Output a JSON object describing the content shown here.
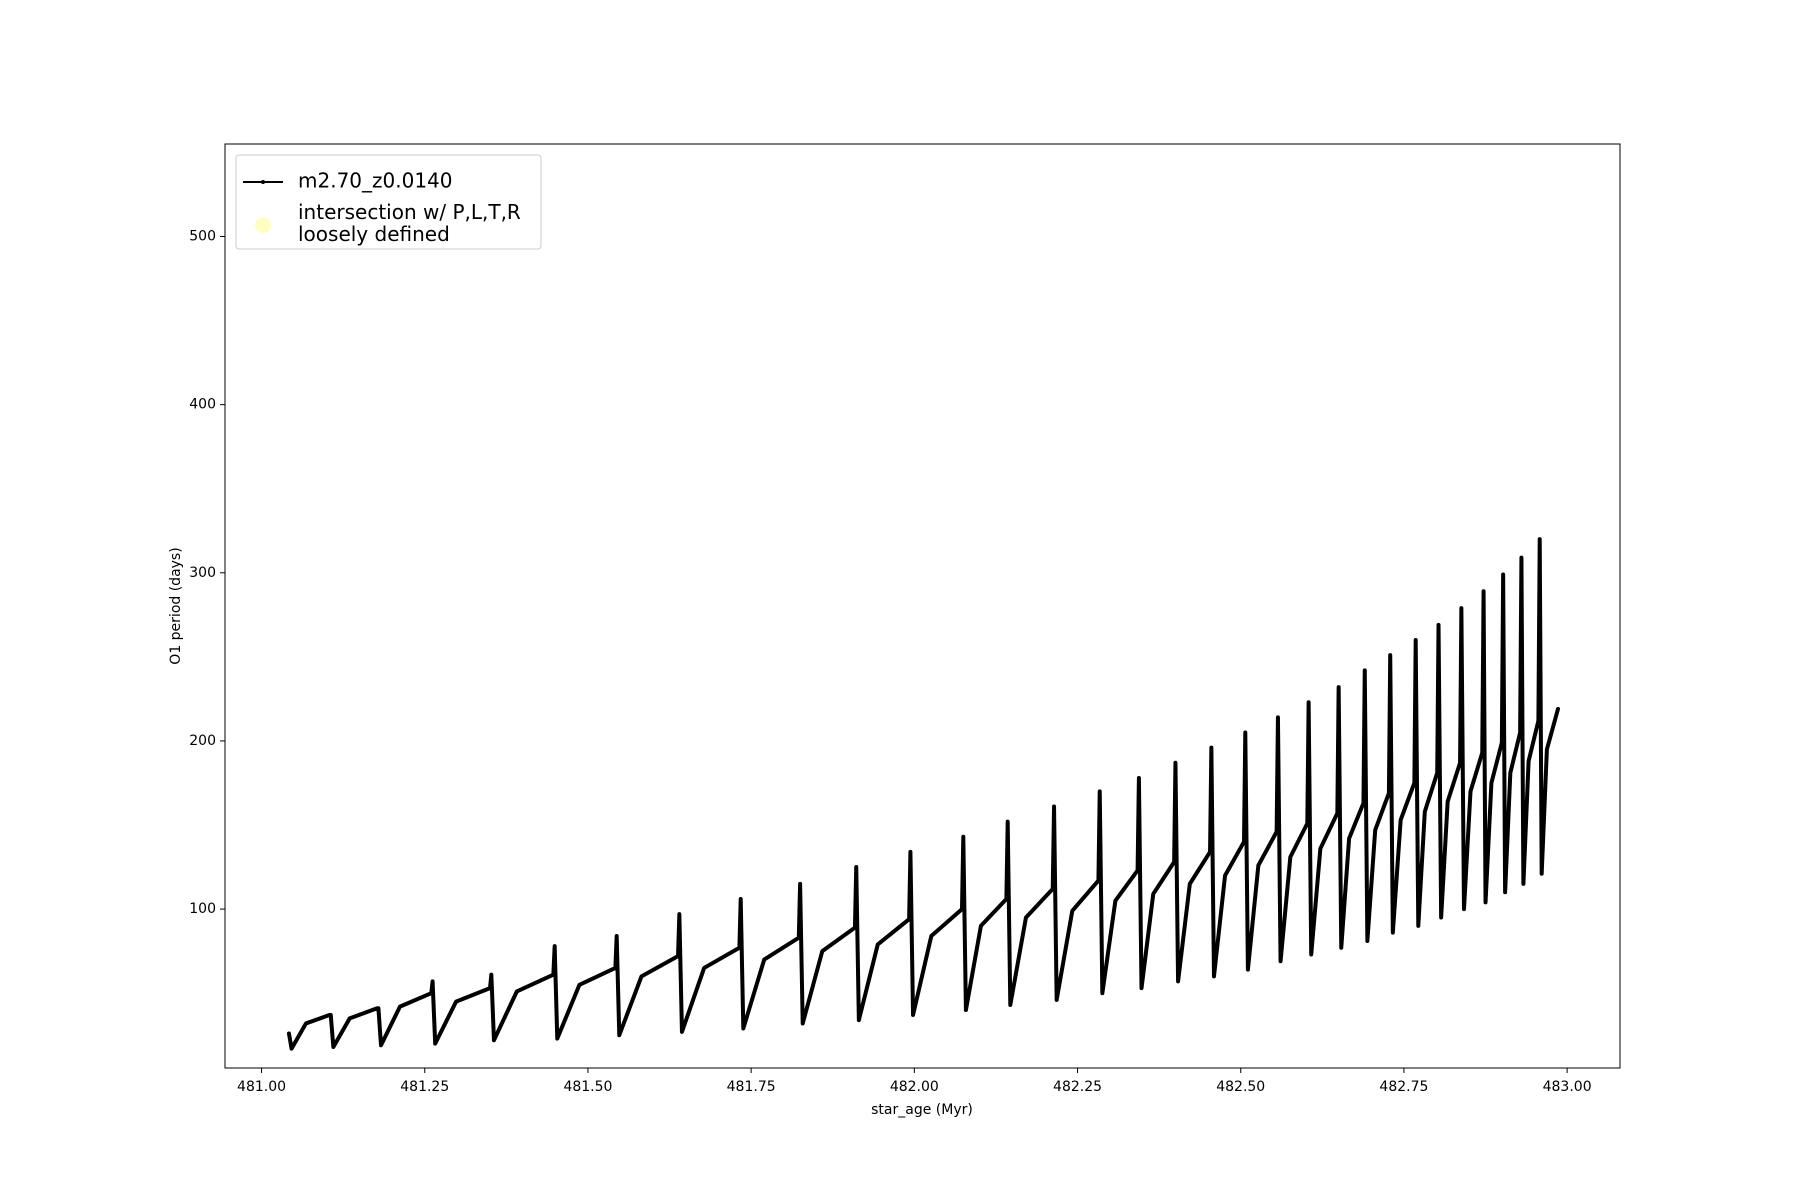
{
  "chart_data": {
    "type": "line",
    "xlabel": "star_age (Myr)",
    "ylabel": "O1 period (days)",
    "xlim": [
      480.944,
      483.081
    ],
    "ylim": [
      5.5,
      555
    ],
    "xticks": [
      {
        "value": 481,
        "label": "481.00"
      },
      481.25,
      {
        "value": 481.5,
        "label": "481.50"
      },
      481.75,
      {
        "value": 482,
        "label": "482.00"
      },
      482.25,
      {
        "value": 482.5,
        "label": "482.50"
      },
      482.75,
      {
        "value": 483,
        "label": "483.00"
      }
    ],
    "yticks": [
      100,
      200,
      300,
      400,
      500
    ],
    "grid": false,
    "legend": "upper left",
    "series": [
      {
        "name": "m2.70_z0.0140",
        "color": "#000000",
        "x": [
          481.042,
          481.046,
          481.068,
          481.104,
          481.106,
          481.11,
          481.135,
          481.177,
          481.179,
          481.183,
          481.212,
          481.26,
          481.262,
          481.266,
          481.298,
          481.35,
          481.352,
          481.356,
          481.391,
          481.447,
          481.449,
          481.453,
          481.487,
          481.542,
          481.544,
          481.548,
          481.582,
          481.638,
          481.64,
          481.644,
          481.678,
          481.732,
          481.734,
          481.738,
          481.77,
          481.823,
          481.825,
          481.829,
          481.859,
          481.909,
          481.911,
          481.915,
          481.944,
          481.992,
          481.994,
          481.998,
          482.026,
          482.073,
          482.075,
          482.079,
          482.102,
          482.141,
          482.143,
          482.147,
          482.171,
          482.212,
          482.214,
          482.218,
          482.242,
          482.282,
          482.284,
          482.288,
          482.308,
          482.342,
          482.344,
          482.348,
          482.366,
          482.398,
          482.4,
          482.404,
          482.422,
          482.453,
          482.455,
          482.459,
          482.476,
          482.505,
          482.507,
          482.511,
          482.527,
          482.555,
          482.557,
          482.561,
          482.576,
          482.602,
          482.604,
          482.608,
          482.622,
          482.648,
          482.65,
          482.654,
          482.666,
          482.688,
          482.69,
          482.694,
          482.706,
          482.727,
          482.729,
          482.733,
          482.745,
          482.766,
          482.768,
          482.772,
          482.782,
          482.801,
          482.803,
          482.807,
          482.817,
          482.836,
          482.838,
          482.842,
          482.852,
          482.87,
          482.872,
          482.875,
          482.884,
          482.9,
          482.902,
          482.905,
          482.913,
          482.928,
          482.93,
          482.933,
          482.941,
          482.956,
          482.958,
          482.961,
          482.969,
          482.986
        ],
        "values": [
          26,
          17,
          32,
          37,
          37,
          18,
          35,
          41,
          41,
          19,
          42,
          50,
          57,
          20,
          45,
          53,
          61,
          22,
          51,
          61,
          78,
          23,
          55,
          65,
          84,
          25,
          60,
          72,
          97,
          27,
          65,
          77,
          106,
          29,
          70,
          83,
          115,
          32,
          75,
          89,
          125,
          34,
          79,
          94,
          134,
          37,
          84,
          100,
          143,
          40,
          90,
          106,
          152,
          43,
          95,
          112,
          161,
          46,
          99,
          117,
          170,
          50,
          105,
          123,
          178,
          53,
          109,
          128,
          187,
          57,
          115,
          134,
          196,
          60,
          120,
          140,
          205,
          64,
          126,
          146,
          214,
          69,
          131,
          151,
          223,
          73,
          136,
          157,
          232,
          77,
          142,
          163,
          242,
          81,
          147,
          169,
          251,
          86,
          153,
          175,
          260,
          90,
          158,
          181,
          269,
          95,
          164,
          187,
          279,
          100,
          170,
          193,
          289,
          104,
          175,
          199,
          299,
          110,
          181,
          205,
          309,
          115,
          188,
          212,
          320,
          121,
          195,
          219
        ]
      },
      {
        "name": "intersection w/ P,L,T,R\nloosely defined",
        "color": "#ffffc0",
        "marker": "circle",
        "x": [],
        "values": []
      }
    ]
  }
}
